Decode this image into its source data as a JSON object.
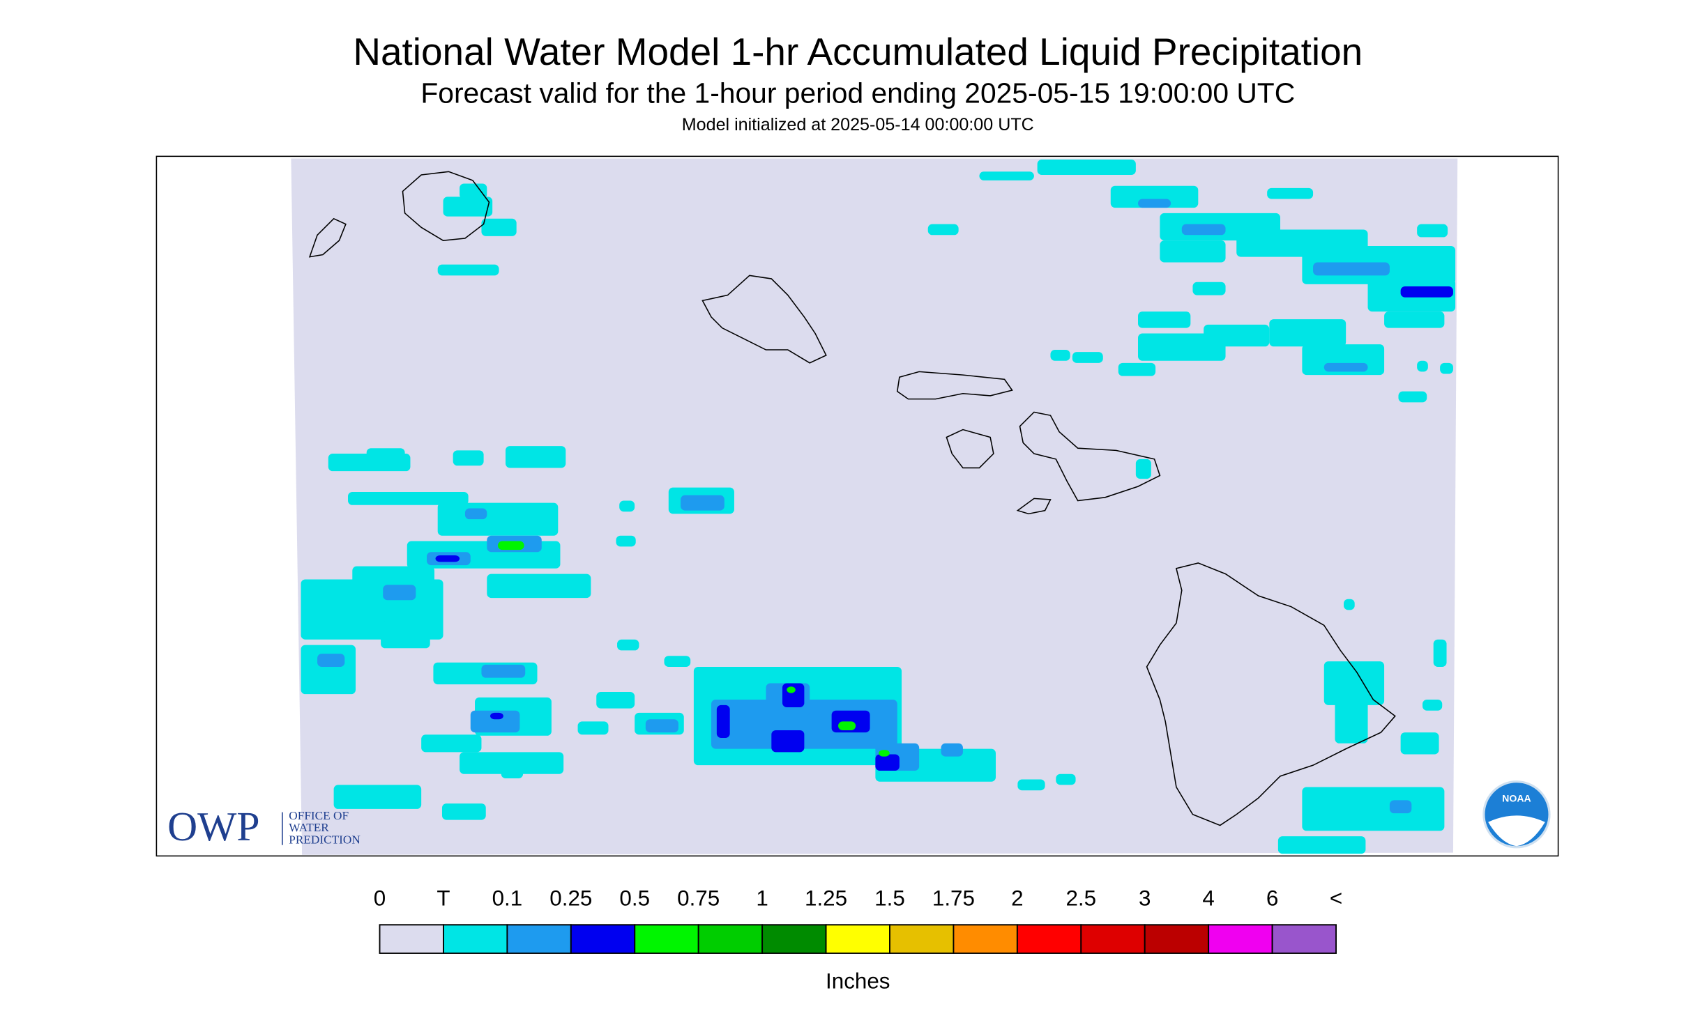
{
  "header": {
    "title": "National Water Model 1-hr Accumulated Liquid Precipitation",
    "subtitle": "Forecast valid for the 1-hour period ending 2025-05-15 19:00:00 UTC",
    "initialized": "Model initialized at 2025-05-14 00:00:00 UTC"
  },
  "legend": {
    "labels": [
      "0",
      "T",
      "0.1",
      "0.25",
      "0.5",
      "0.75",
      "1",
      "1.25",
      "1.5",
      "1.75",
      "2",
      "2.5",
      "3",
      "4",
      "6",
      "<"
    ],
    "colors": [
      "#dcdcee",
      "#00e5e5",
      "#1e9bef",
      "#0000f0",
      "#00f500",
      "#00cd00",
      "#008b00",
      "#ffff00",
      "#e6c000",
      "#ff8c00",
      "#ff0000",
      "#de0000",
      "#bb0000",
      "#f000f0",
      "#9955cc"
    ],
    "unit": "Inches"
  },
  "logo": {
    "abbr": "OWP",
    "lines": [
      "OFFICE OF",
      "WATER",
      "PREDICTION"
    ]
  },
  "badge": "NOAA"
}
